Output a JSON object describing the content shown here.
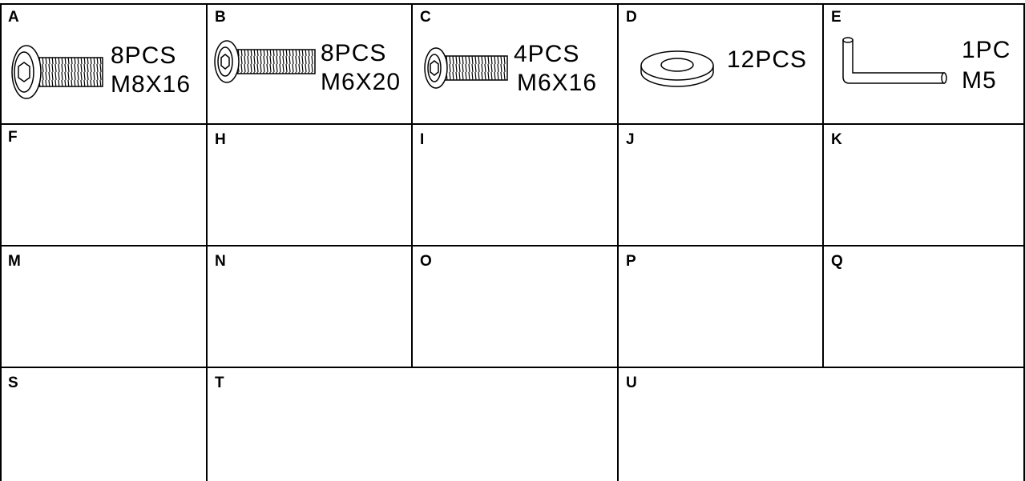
{
  "rows": [
    [
      {
        "label": "A",
        "quantity": "8PCS",
        "size": "M8X16"
      },
      {
        "label": "B",
        "quantity": "8PCS",
        "size": "M6X20"
      },
      {
        "label": "C",
        "quantity": "4PCS",
        "size": "M6X16"
      },
      {
        "label": "D",
        "quantity": "12PCS"
      },
      {
        "label": "E",
        "quantity": "1PC",
        "size": "M5"
      }
    ],
    [
      {
        "label": "F"
      },
      {
        "label": "H"
      },
      {
        "label": "I"
      },
      {
        "label": "J"
      },
      {
        "label": "K"
      }
    ],
    [
      {
        "label": "M"
      },
      {
        "label": "N"
      },
      {
        "label": "O"
      },
      {
        "label": "P"
      },
      {
        "label": "Q"
      }
    ],
    [
      {
        "label": "S"
      },
      {
        "label": "T"
      },
      {
        "label": "U"
      }
    ]
  ]
}
